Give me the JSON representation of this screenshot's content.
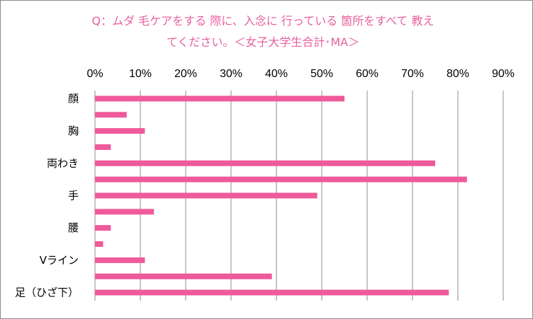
{
  "chart_data": {
    "type": "bar",
    "orientation": "horizontal",
    "title": "Q：ムダ毛ケアをする際に、入念に行っている箇所をすべて教えてください。＜女子大学生合計・MA＞",
    "title_lines": [
      "Q：ムダ 毛ケアをする 際に、入念に 行っている 箇所をすべて 教え",
      "てください。＜女子大学生合計･MA＞"
    ],
    "xlim": [
      0,
      90
    ],
    "x_ticks": [
      "0%",
      "10%",
      "20%",
      "30%",
      "40%",
      "50%",
      "60%",
      "70%",
      "80%",
      "90%"
    ],
    "category_labels": [
      "顔",
      "",
      "胸",
      "",
      "両わき",
      "",
      "手",
      "",
      "腰",
      "",
      "Vライン",
      "",
      "足（ひざ下）"
    ],
    "values": [
      55,
      7,
      11,
      3.5,
      75,
      82,
      49,
      13,
      3.5,
      1.8,
      11,
      39,
      78
    ],
    "bar_color": "#ee5a9a",
    "gridlines": true,
    "legend": "none"
  }
}
